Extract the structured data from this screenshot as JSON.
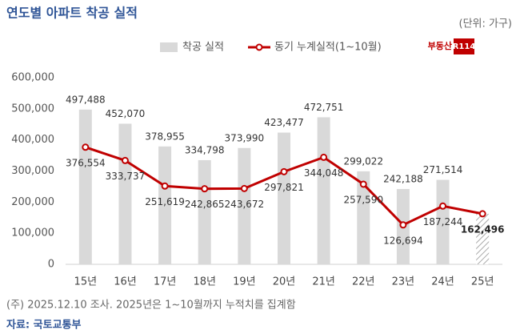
{
  "chart_data": {
    "type": "bar_line",
    "title": "연도별 아파트 착공 실적",
    "unit": "(단위: 가구)",
    "logo": [
      "부동산",
      "R114"
    ],
    "note": "(주) 2025.12.10 조사. 2025년은 1~10월까지 누적치를 집계함",
    "source": "자료: 국토교통부",
    "categories": [
      "15년",
      "16년",
      "17년",
      "18년",
      "19년",
      "20년",
      "21년",
      "22년",
      "23년",
      "24년",
      "25년"
    ],
    "series": [
      {
        "name": "착공 실적",
        "type": "bar",
        "color": "#d9d9d9",
        "values": [
          497488,
          452070,
          378955,
          334798,
          373990,
          423477,
          472751,
          299022,
          242188,
          271514,
          162496
        ],
        "value_labels": [
          "497,488",
          "452,070",
          "378,955",
          "334,798",
          "373,990",
          "423,477",
          "472,751",
          "299,022",
          "242,188",
          "271,514",
          null
        ],
        "hatched": [
          false,
          false,
          false,
          false,
          false,
          false,
          false,
          false,
          false,
          false,
          true
        ]
      },
      {
        "name": "동기 누계실적(1~10월)",
        "type": "line",
        "color": "#c00000",
        "values": [
          376554,
          333737,
          251619,
          242865,
          243672,
          297821,
          344048,
          257590,
          126694,
          187244,
          162496
        ],
        "value_labels": [
          "376,554",
          "333,737",
          "251,619",
          "242,865",
          "243,672",
          "297,821",
          "344,048",
          "257,590",
          "126,694",
          "187,244",
          "162,496"
        ]
      }
    ],
    "ylim": [
      0,
      600000
    ],
    "yticks": [
      0,
      {
        "value": 100000,
        "label": "100,000"
      },
      {
        "value": 200000,
        "label": "200,000"
      },
      {
        "value": 300000,
        "label": "300,000"
      },
      {
        "value": 400000,
        "label": "400,000"
      },
      {
        "value": 500000,
        "label": "500,000"
      },
      {
        "value": 600000,
        "label": "600,000"
      }
    ],
    "grid": false
  }
}
